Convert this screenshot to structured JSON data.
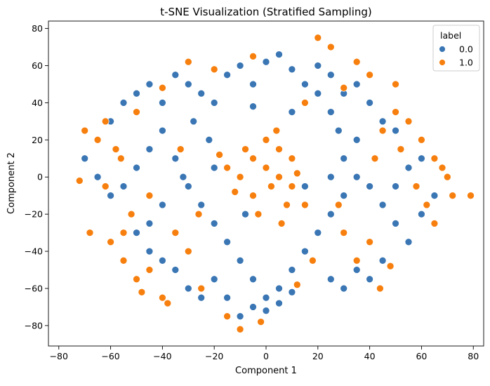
{
  "chart_data": {
    "type": "scatter",
    "title": "t-SNE Visualization (Stratified Sampling)",
    "xlabel": "Component 1",
    "ylabel": "Component 2",
    "xlim": [
      -84,
      84
    ],
    "ylim": [
      -91,
      84
    ],
    "xticks": [
      -80,
      -60,
      -40,
      -20,
      0,
      20,
      40,
      60,
      80
    ],
    "yticks": [
      -80,
      -60,
      -40,
      -20,
      0,
      20,
      40,
      60,
      80
    ],
    "grid": false,
    "legend": {
      "title": "label",
      "placement": "top-right",
      "entries": [
        {
          "name": "0.0",
          "color": "#3a76b4"
        },
        {
          "name": "1.0",
          "color": "#f77f0e"
        }
      ]
    },
    "series": [
      {
        "name": "0.0",
        "color": "#3a76b4",
        "points": [
          [
            -60,
            30
          ],
          [
            -55,
            40
          ],
          [
            -50,
            45
          ],
          [
            -45,
            50
          ],
          [
            -40,
            40
          ],
          [
            -35,
            55
          ],
          [
            -30,
            50
          ],
          [
            -25,
            45
          ],
          [
            -20,
            40
          ],
          [
            -15,
            55
          ],
          [
            -10,
            60
          ],
          [
            -5,
            50
          ],
          [
            0,
            62
          ],
          [
            5,
            66
          ],
          [
            10,
            58
          ],
          [
            15,
            50
          ],
          [
            20,
            60
          ],
          [
            25,
            55
          ],
          [
            30,
            45
          ],
          [
            35,
            50
          ],
          [
            40,
            40
          ],
          [
            45,
            30
          ],
          [
            50,
            25
          ],
          [
            -70,
            10
          ],
          [
            -65,
            0
          ],
          [
            -60,
            -10
          ],
          [
            -55,
            -5
          ],
          [
            -50,
            5
          ],
          [
            -45,
            15
          ],
          [
            -40,
            25
          ],
          [
            -35,
            10
          ],
          [
            -30,
            -5
          ],
          [
            -25,
            -15
          ],
          [
            -20,
            -25
          ],
          [
            -15,
            -35
          ],
          [
            -10,
            -45
          ],
          [
            -5,
            -55
          ],
          [
            0,
            -65
          ],
          [
            5,
            -60
          ],
          [
            10,
            -50
          ],
          [
            15,
            -40
          ],
          [
            20,
            -30
          ],
          [
            25,
            -20
          ],
          [
            30,
            -10
          ],
          [
            35,
            0
          ],
          [
            40,
            -5
          ],
          [
            45,
            -15
          ],
          [
            50,
            -25
          ],
          [
            55,
            -35
          ],
          [
            60,
            -20
          ],
          [
            65,
            -10
          ],
          [
            70,
            0
          ],
          [
            60,
            10
          ],
          [
            55,
            5
          ],
          [
            50,
            -5
          ],
          [
            45,
            -45
          ],
          [
            40,
            -55
          ],
          [
            35,
            -50
          ],
          [
            30,
            -60
          ],
          [
            25,
            -55
          ],
          [
            -20,
            -55
          ],
          [
            -25,
            -65
          ],
          [
            -30,
            -60
          ],
          [
            -35,
            -50
          ],
          [
            -40,
            -45
          ],
          [
            -45,
            -40
          ],
          [
            -50,
            -30
          ],
          [
            -45,
            -25
          ],
          [
            -40,
            -15
          ],
          [
            -35,
            -30
          ],
          [
            -10,
            -75
          ],
          [
            -5,
            -70
          ],
          [
            0,
            -72
          ],
          [
            5,
            -68
          ],
          [
            10,
            -62
          ],
          [
            -15,
            -65
          ],
          [
            20,
            45
          ],
          [
            25,
            35
          ],
          [
            10,
            35
          ],
          [
            -5,
            38
          ],
          [
            -22,
            20
          ],
          [
            -28,
            30
          ],
          [
            -32,
            0
          ],
          [
            -20,
            5
          ],
          [
            15,
            -5
          ],
          [
            25,
            0
          ],
          [
            30,
            10
          ],
          [
            35,
            20
          ],
          [
            28,
            25
          ],
          [
            -8,
            -20
          ]
        ]
      },
      {
        "name": "1.0",
        "color": "#f77f0e",
        "points": [
          [
            -70,
            25
          ],
          [
            -72,
            -2
          ],
          [
            -68,
            -30
          ],
          [
            -60,
            -35
          ],
          [
            -55,
            -45
          ],
          [
            -50,
            -55
          ],
          [
            -48,
            -62
          ],
          [
            -40,
            -65
          ],
          [
            -35,
            -30
          ],
          [
            -30,
            -40
          ],
          [
            -65,
            20
          ],
          [
            -58,
            15
          ],
          [
            -52,
            -20
          ],
          [
            -45,
            -50
          ],
          [
            -62,
            30
          ],
          [
            -55,
            -30
          ],
          [
            -5,
            10
          ],
          [
            0,
            5
          ],
          [
            5,
            0
          ],
          [
            10,
            -5
          ],
          [
            -10,
            0
          ],
          [
            -15,
            5
          ],
          [
            0,
            20
          ],
          [
            5,
            15
          ],
          [
            -5,
            -10
          ],
          [
            10,
            10
          ],
          [
            15,
            -15
          ],
          [
            -8,
            15
          ],
          [
            2,
            -5
          ],
          [
            8,
            -15
          ],
          [
            -12,
            -8
          ],
          [
            4,
            25
          ],
          [
            12,
            2
          ],
          [
            -3,
            -20
          ],
          [
            6,
            -25
          ],
          [
            -18,
            12
          ],
          [
            60,
            20
          ],
          [
            65,
            10
          ],
          [
            70,
            0
          ],
          [
            72,
            -10
          ],
          [
            65,
            -25
          ],
          [
            55,
            30
          ],
          [
            50,
            35
          ],
          [
            45,
            25
          ],
          [
            58,
            -5
          ],
          [
            62,
            -15
          ],
          [
            68,
            5
          ],
          [
            52,
            15
          ],
          [
            40,
            55
          ],
          [
            50,
            50
          ],
          [
            35,
            62
          ],
          [
            30,
            48
          ],
          [
            25,
            70
          ],
          [
            20,
            75
          ],
          [
            15,
            40
          ],
          [
            -5,
            65
          ],
          [
            -20,
            58
          ],
          [
            -30,
            62
          ],
          [
            -40,
            48
          ],
          [
            -50,
            35
          ],
          [
            35,
            -45
          ],
          [
            40,
            -35
          ],
          [
            30,
            -30
          ],
          [
            -25,
            -60
          ],
          [
            -15,
            -75
          ],
          [
            -10,
            -82
          ],
          [
            -2,
            -78
          ],
          [
            12,
            -58
          ],
          [
            18,
            -45
          ],
          [
            -38,
            -68
          ],
          [
            44,
            -60
          ],
          [
            -62,
            -5
          ],
          [
            -56,
            10
          ],
          [
            48,
            -48
          ],
          [
            79,
            -10
          ],
          [
            -45,
            -10
          ],
          [
            42,
            10
          ],
          [
            28,
            -15
          ],
          [
            -26,
            -20
          ],
          [
            -33,
            15
          ]
        ]
      }
    ]
  }
}
